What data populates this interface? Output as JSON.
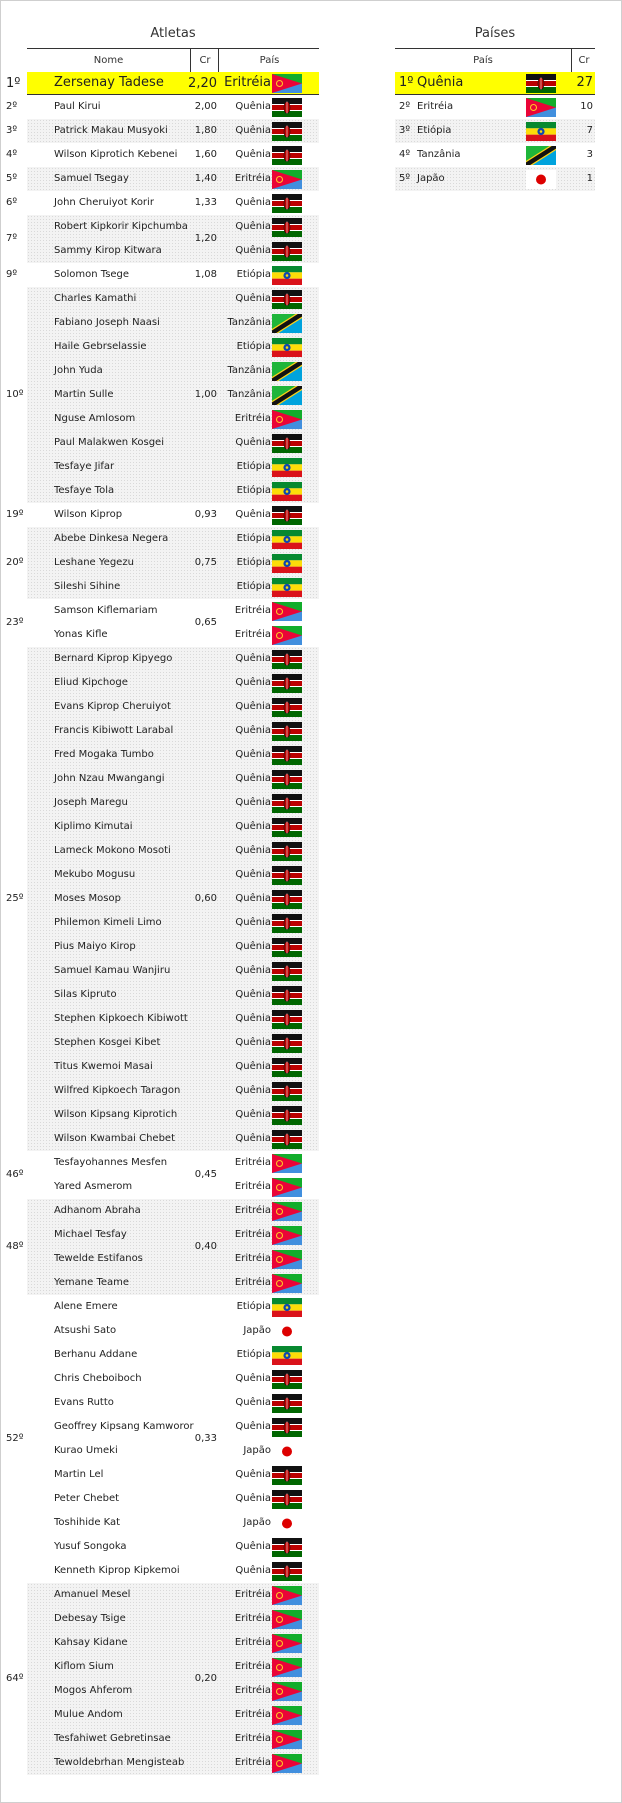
{
  "sections": {
    "athletes_title": "Atletas",
    "countries_title": "Países"
  },
  "athletes_table": {
    "headers": {
      "name": "Nome",
      "cr": "Cr",
      "country": "País"
    },
    "groups": [
      {
        "rank": "1º",
        "cr": "2,20",
        "highlight": true,
        "athletes": [
          {
            "name": "Zersenay Tadese",
            "country": "Eritréia",
            "flag": "eritrea"
          }
        ]
      },
      {
        "rank": "2º",
        "cr": "2,00",
        "athletes": [
          {
            "name": "Paul Kirui",
            "country": "Quênia",
            "flag": "kenya"
          }
        ]
      },
      {
        "rank": "3º",
        "cr": "1,80",
        "athletes": [
          {
            "name": "Patrick Makau Musyoki",
            "country": "Quênia",
            "flag": "kenya"
          }
        ]
      },
      {
        "rank": "4º",
        "cr": "1,60",
        "athletes": [
          {
            "name": "Wilson Kiprotich Kebenei",
            "country": "Quênia",
            "flag": "kenya"
          }
        ]
      },
      {
        "rank": "5º",
        "cr": "1,40",
        "athletes": [
          {
            "name": "Samuel Tsegay",
            "country": "Eritréia",
            "flag": "eritrea"
          }
        ]
      },
      {
        "rank": "6º",
        "cr": "1,33",
        "athletes": [
          {
            "name": "John Cheruiyot Korir",
            "country": "Quênia",
            "flag": "kenya"
          }
        ]
      },
      {
        "rank": "7º",
        "cr": "1,20",
        "athletes": [
          {
            "name": "Robert Kipkorir Kipchumba",
            "country": "Quênia",
            "flag": "kenya"
          },
          {
            "name": "Sammy Kirop Kitwara",
            "country": "Quênia",
            "flag": "kenya"
          }
        ]
      },
      {
        "rank": "9º",
        "cr": "1,08",
        "athletes": [
          {
            "name": "Solomon Tsege",
            "country": "Etiópia",
            "flag": "ethiopia"
          }
        ]
      },
      {
        "rank": "10º",
        "cr": "1,00",
        "athletes": [
          {
            "name": "Charles Kamathi",
            "country": "Quênia",
            "flag": "kenya"
          },
          {
            "name": "Fabiano Joseph Naasi",
            "country": "Tanzânia",
            "flag": "tanzania"
          },
          {
            "name": "Haile Gebrselassie",
            "country": "Etiópia",
            "flag": "ethiopia"
          },
          {
            "name": "John Yuda",
            "country": "Tanzânia",
            "flag": "tanzania"
          },
          {
            "name": "Martin Sulle",
            "country": "Tanzânia",
            "flag": "tanzania"
          },
          {
            "name": "Nguse Amlosom",
            "country": "Eritréia",
            "flag": "eritrea"
          },
          {
            "name": "Paul Malakwen Kosgei",
            "country": "Quênia",
            "flag": "kenya"
          },
          {
            "name": "Tesfaye Jifar",
            "country": "Etiópia",
            "flag": "ethiopia"
          },
          {
            "name": "Tesfaye Tola",
            "country": "Etiópia",
            "flag": "ethiopia"
          }
        ]
      },
      {
        "rank": "19º",
        "cr": "0,93",
        "athletes": [
          {
            "name": "Wilson Kiprop",
            "country": "Quênia",
            "flag": "kenya"
          }
        ]
      },
      {
        "rank": "20º",
        "cr": "0,75",
        "athletes": [
          {
            "name": "Abebe Dinkesa Negera",
            "country": "Etiópia",
            "flag": "ethiopia"
          },
          {
            "name": "Leshane Yegezu",
            "country": "Etiópia",
            "flag": "ethiopia"
          },
          {
            "name": "Sileshi Sihine",
            "country": "Etiópia",
            "flag": "ethiopia"
          }
        ]
      },
      {
        "rank": "23º",
        "cr": "0,65",
        "athletes": [
          {
            "name": "Samson Kiflemariam",
            "country": "Eritréia",
            "flag": "eritrea"
          },
          {
            "name": "Yonas Kifle",
            "country": "Eritréia",
            "flag": "eritrea"
          }
        ]
      },
      {
        "rank": "25º",
        "cr": "0,60",
        "athletes": [
          {
            "name": "Bernard Kiprop Kipyego",
            "country": "Quênia",
            "flag": "kenya"
          },
          {
            "name": "Eliud Kipchoge",
            "country": "Quênia",
            "flag": "kenya"
          },
          {
            "name": "Evans Kiprop Cheruiyot",
            "country": "Quênia",
            "flag": "kenya"
          },
          {
            "name": "Francis Kibiwott Larabal",
            "country": "Quênia",
            "flag": "kenya"
          },
          {
            "name": "Fred Mogaka Tumbo",
            "country": "Quênia",
            "flag": "kenya"
          },
          {
            "name": "John Nzau Mwangangi",
            "country": "Quênia",
            "flag": "kenya"
          },
          {
            "name": "Joseph Maregu",
            "country": "Quênia",
            "flag": "kenya"
          },
          {
            "name": "Kiplimo Kimutai",
            "country": "Quênia",
            "flag": "kenya"
          },
          {
            "name": "Lameck Mokono Mosoti",
            "country": "Quênia",
            "flag": "kenya"
          },
          {
            "name": "Mekubo Mogusu",
            "country": "Quênia",
            "flag": "kenya"
          },
          {
            "name": "Moses Mosop",
            "country": "Quênia",
            "flag": "kenya"
          },
          {
            "name": "Philemon Kimeli Limo",
            "country": "Quênia",
            "flag": "kenya"
          },
          {
            "name": "Pius Maiyo Kirop",
            "country": "Quênia",
            "flag": "kenya"
          },
          {
            "name": "Samuel Kamau Wanjiru",
            "country": "Quênia",
            "flag": "kenya"
          },
          {
            "name": "Silas Kipruto",
            "country": "Quênia",
            "flag": "kenya"
          },
          {
            "name": "Stephen Kipkoech Kibiwott",
            "country": "Quênia",
            "flag": "kenya"
          },
          {
            "name": "Stephen Kosgei Kibet",
            "country": "Quênia",
            "flag": "kenya"
          },
          {
            "name": "Titus Kwemoi Masai",
            "country": "Quênia",
            "flag": "kenya"
          },
          {
            "name": "Wilfred Kipkoech Taragon",
            "country": "Quênia",
            "flag": "kenya"
          },
          {
            "name": "Wilson Kipsang Kiprotich",
            "country": "Quênia",
            "flag": "kenya"
          },
          {
            "name": "Wilson Kwambai Chebet",
            "country": "Quênia",
            "flag": "kenya"
          }
        ]
      },
      {
        "rank": "46º",
        "cr": "0,45",
        "athletes": [
          {
            "name": "Tesfayohannes Mesfen",
            "country": "Eritréia",
            "flag": "eritrea"
          },
          {
            "name": "Yared Asmerom",
            "country": "Eritréia",
            "flag": "eritrea"
          }
        ]
      },
      {
        "rank": "48º",
        "cr": "0,40",
        "athletes": [
          {
            "name": "Adhanom Abraha",
            "country": "Eritréia",
            "flag": "eritrea"
          },
          {
            "name": "Michael Tesfay",
            "country": "Eritréia",
            "flag": "eritrea"
          },
          {
            "name": "Tewelde Estifanos",
            "country": "Eritréia",
            "flag": "eritrea"
          },
          {
            "name": "Yemane Teame",
            "country": "Eritréia",
            "flag": "eritrea"
          }
        ]
      },
      {
        "rank": "52º",
        "cr": "0,33",
        "athletes": [
          {
            "name": "Alene Emere",
            "country": "Etiópia",
            "flag": "ethiopia"
          },
          {
            "name": "Atsushi Sato",
            "country": "Japão",
            "flag": "japan"
          },
          {
            "name": "Berhanu Addane",
            "country": "Etiópia",
            "flag": "ethiopia"
          },
          {
            "name": "Chris Cheboiboch",
            "country": "Quênia",
            "flag": "kenya"
          },
          {
            "name": "Evans Rutto",
            "country": "Quênia",
            "flag": "kenya"
          },
          {
            "name": "Geoffrey Kipsang Kamworor",
            "country": "Quênia",
            "flag": "kenya"
          },
          {
            "name": "Kurao Umeki",
            "country": "Japão",
            "flag": "japan"
          },
          {
            "name": "Martin Lel",
            "country": "Quênia",
            "flag": "kenya"
          },
          {
            "name": "Peter Chebet",
            "country": "Quênia",
            "flag": "kenya"
          },
          {
            "name": "Toshihide Kat",
            "country": "Japão",
            "flag": "japan"
          },
          {
            "name": "Yusuf Songoka",
            "country": "Quênia",
            "flag": "kenya"
          },
          {
            "name": "Kenneth Kiprop Kipkemoi",
            "country": "Quênia",
            "flag": "kenya"
          }
        ]
      },
      {
        "rank": "64º",
        "cr": "0,20",
        "athletes": [
          {
            "name": "Amanuel Mesel",
            "country": "Eritréia",
            "flag": "eritrea"
          },
          {
            "name": "Debesay Tsige",
            "country": "Eritréia",
            "flag": "eritrea"
          },
          {
            "name": "Kahsay Kidane",
            "country": "Eritréia",
            "flag": "eritrea"
          },
          {
            "name": "Kiflom Sium",
            "country": "Eritréia",
            "flag": "eritrea"
          },
          {
            "name": "Mogos Ahferom",
            "country": "Eritréia",
            "flag": "eritrea"
          },
          {
            "name": "Mulue Andom",
            "country": "Eritréia",
            "flag": "eritrea"
          },
          {
            "name": "Tesfahiwet Gebretinsae",
            "country": "Eritréia",
            "flag": "eritrea"
          },
          {
            "name": "Tewoldebrhan Mengisteab",
            "country": "Eritréia",
            "flag": "eritrea"
          }
        ]
      }
    ]
  },
  "countries_table": {
    "headers": {
      "country": "País",
      "cr": "Cr"
    },
    "rows": [
      {
        "rank": "1º",
        "country": "Quênia",
        "flag": "kenya",
        "count": "27",
        "highlight": true
      },
      {
        "rank": "2º",
        "country": "Eritréia",
        "flag": "eritrea",
        "count": "10"
      },
      {
        "rank": "3º",
        "country": "Etiópia",
        "flag": "ethiopia",
        "count": "7"
      },
      {
        "rank": "4º",
        "country": "Tanzânia",
        "flag": "tanzania",
        "count": "3"
      },
      {
        "rank": "5º",
        "country": "Japão",
        "flag": "japan",
        "count": "1"
      }
    ]
  }
}
